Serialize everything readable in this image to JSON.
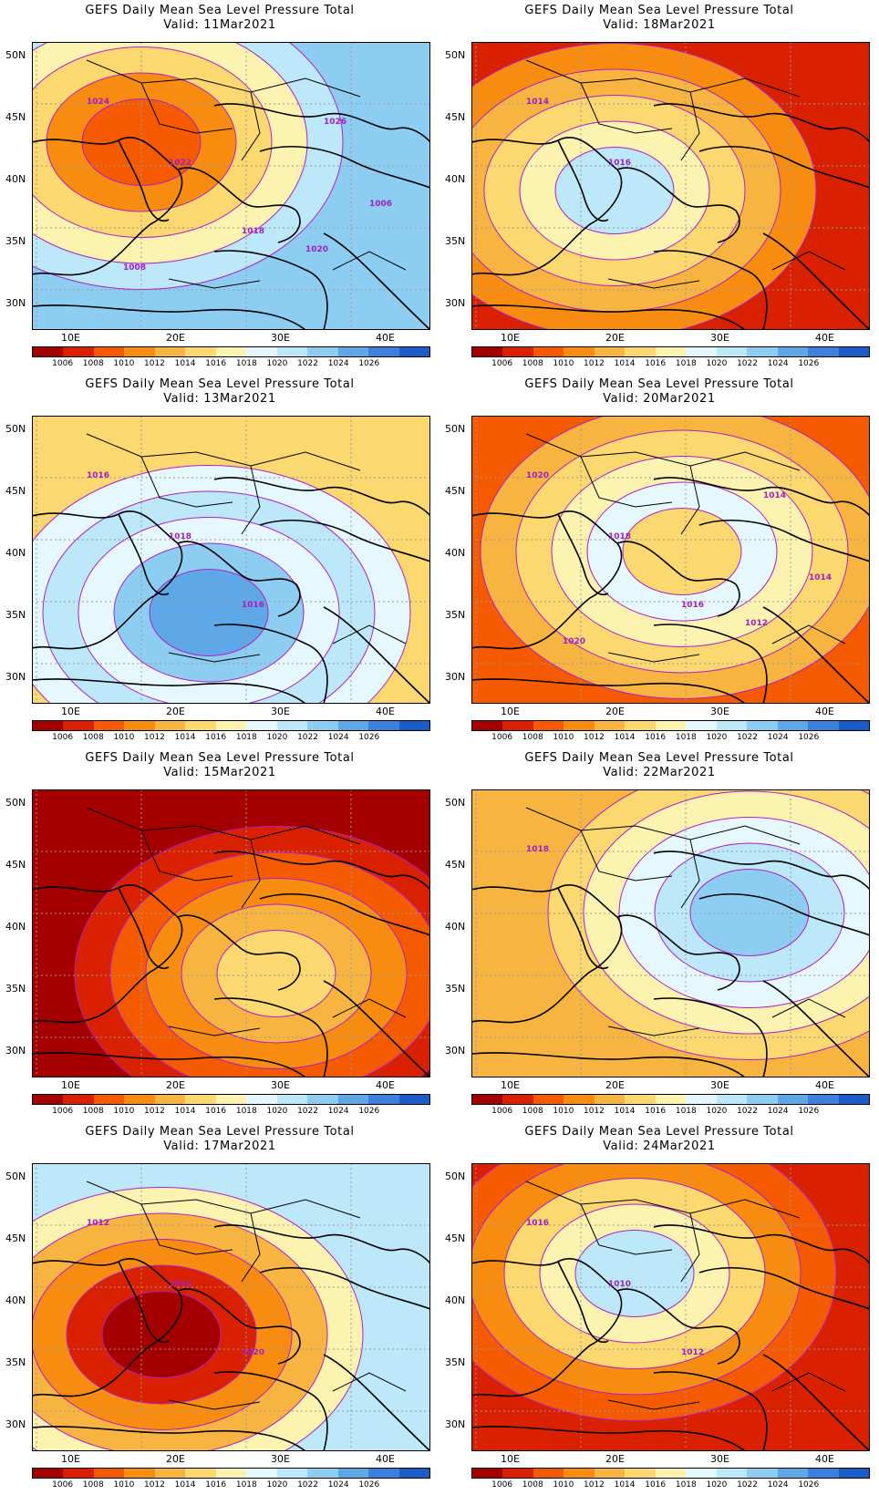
{
  "colorbar": {
    "labels": [
      "1006",
      "1008",
      "1010",
      "1012",
      "1014",
      "1016",
      "1018",
      "1020",
      "1022",
      "1024",
      "1026"
    ],
    "colors": [
      "#a50000",
      "#d92000",
      "#f55a00",
      "#f88c10",
      "#f7b440",
      "#fbd870",
      "#fdf3b0",
      "#e6f8ff",
      "#bce8fa",
      "#8dcdf2",
      "#5fa8e8",
      "#3a80dc",
      "#1a5cc8"
    ]
  },
  "lat_labels": [
    "50N",
    "45N",
    "40N",
    "35N",
    "30N"
  ],
  "lon_labels": [
    "10E",
    "20E",
    "30E",
    "40E"
  ],
  "panels": [
    {
      "title": "GEFS Daily Mean Sea Level Pressure Total",
      "valid": "Valid: 11Mar2021",
      "labels": [
        "1024",
        "1022",
        "1018",
        "1026",
        "1020",
        "1008",
        "1006"
      ],
      "bands": [
        9,
        8,
        6,
        5,
        3,
        2
      ]
    },
    {
      "title": "GEFS Daily Mean Sea Level Pressure Total",
      "valid": "Valid: 18Mar2021",
      "labels": [
        "1014",
        "1016"
      ],
      "bands": [
        1,
        3,
        4,
        5,
        6,
        8
      ]
    },
    {
      "title": "GEFS Daily Mean Sea Level Pressure Total",
      "valid": "Valid: 13Mar2021",
      "labels": [
        "1016",
        "1018",
        "1016"
      ],
      "bands": [
        5,
        7,
        8,
        7,
        9,
        10
      ]
    },
    {
      "title": "GEFS Daily Mean Sea Level Pressure Total",
      "valid": "Valid: 20Mar2021",
      "labels": [
        "1020",
        "1018",
        "1016",
        "1014",
        "1012",
        "1020",
        "1014"
      ],
      "bands": [
        2,
        4,
        5,
        6,
        7,
        5
      ]
    },
    {
      "title": "GEFS Daily Mean Sea Level Pressure Total",
      "valid": "Valid: 15Mar2021",
      "labels": [],
      "bands": [
        0,
        1,
        2,
        3,
        4,
        5
      ]
    },
    {
      "title": "GEFS Daily Mean Sea Level Pressure Total",
      "valid": "Valid: 22Mar2021",
      "labels": [
        "1018"
      ],
      "bands": [
        4,
        5,
        6,
        7,
        8,
        9
      ]
    },
    {
      "title": "GEFS Daily Mean Sea Level Pressure Total",
      "valid": "Valid: 17Mar2021",
      "labels": [
        "1012",
        "1014",
        "1020"
      ],
      "bands": [
        8,
        6,
        4,
        3,
        1,
        0
      ]
    },
    {
      "title": "GEFS Daily Mean Sea Level Pressure Total",
      "valid": "Valid: 24Mar2021",
      "labels": [
        "1016",
        "1010",
        "1012"
      ],
      "bands": [
        1,
        2,
        3,
        5,
        6,
        8
      ]
    }
  ]
}
